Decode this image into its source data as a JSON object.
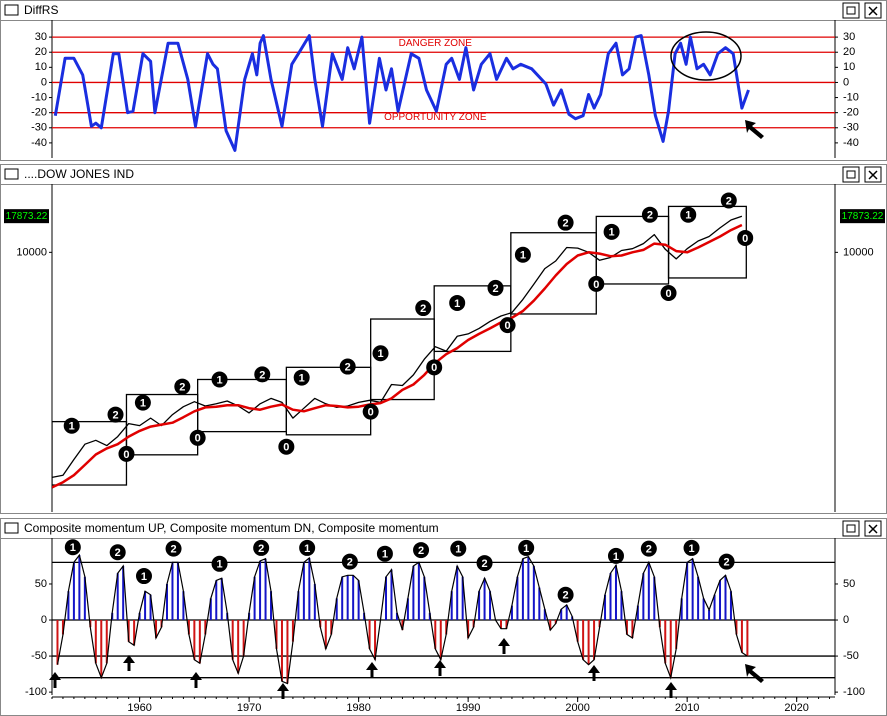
{
  "chart_data": [
    {
      "type": "line",
      "title": "DiffRS",
      "xlim": [
        1952,
        2023.5
      ],
      "ylim": [
        -50,
        40
      ],
      "yticks": [
        30,
        20,
        10,
        0,
        -10,
        -20,
        -30,
        -40
      ],
      "hlines": [
        30,
        20,
        0,
        -20,
        -30
      ],
      "hline_color": "#e00000",
      "annotations": [
        {
          "text": "DANGER ZONE",
          "x": 1987,
          "y": 26
        },
        {
          "text": "OPPORTUNITY ZONE",
          "x": 1987,
          "y": -23
        }
      ],
      "annotation_color": "#e00000",
      "series": [
        {
          "color": "#1a2ee0",
          "x": [
            1952.3,
            1953.2,
            1954,
            1954.8,
            1955.6,
            1956,
            1956.5,
            1957.6,
            1958.1,
            1958.9,
            1959.4,
            1960.3,
            1961,
            1961.4,
            1962.6,
            1963.5,
            1964.4,
            1965.1,
            1966.2,
            1966.7,
            1967.1,
            1967.9,
            1968.7,
            1969.6,
            1970.3,
            1970.7,
            1971,
            1971.3,
            1972,
            1973,
            1973.9,
            1974.5,
            1975.5,
            1976,
            1976.7,
            1977.6,
            1978.5,
            1979,
            1979.6,
            1980.3,
            1981,
            1981.9,
            1982.5,
            1983,
            1983.6,
            1984.8,
            1985.5,
            1986.2,
            1987.1,
            1988,
            1988.5,
            1989.2,
            1989.8,
            1990.5,
            1991.2,
            1992,
            1992.6,
            1993.5,
            1994.1,
            1994.8,
            1995.8,
            1997.1,
            1997.8,
            1998.5,
            1999.2,
            1999.8,
            2000.5,
            2001,
            2001.5,
            2002.1,
            2002.8,
            2003.5,
            2004.1,
            2004.7,
            2005.3,
            2005.8,
            2006.5,
            2007.1,
            2007.8,
            2008.3,
            2008.9,
            2009.4,
            2009.9,
            2010.3,
            2010.9,
            2011.5,
            2012.1,
            2012.8,
            2013.5,
            2014.2,
            2015,
            2015.6
          ],
          "values": [
            -22,
            16,
            16,
            5,
            -29,
            -27,
            -30,
            19,
            19,
            -20,
            -19,
            19,
            14,
            -20,
            26,
            26,
            2,
            -29,
            19,
            12,
            9,
            -32,
            -45,
            2,
            19,
            5,
            26,
            31,
            2,
            -29,
            12,
            19,
            31,
            2,
            -29,
            19,
            2,
            23,
            9,
            30,
            -27,
            16,
            -5,
            9,
            -19,
            19,
            16,
            -5,
            -19,
            12,
            16,
            2,
            23,
            -5,
            12,
            19,
            2,
            16,
            9,
            12,
            9,
            -1,
            -15,
            -5,
            -21,
            -24,
            -22,
            -8,
            -17,
            -8,
            19,
            26,
            5,
            9,
            30,
            31,
            5,
            -22,
            -39,
            -19,
            19,
            26,
            12,
            30,
            9,
            12,
            5,
            19,
            23,
            19,
            -17,
            -5
          ]
        }
      ]
    },
    {
      "type": "line",
      "title": "....DOW JONES IND",
      "log_scale": true,
      "xlim": [
        1952,
        2023.5
      ],
      "ylim": [
        155,
        29000
      ],
      "yticks": [
        10000
      ],
      "last_value_color": "#00ff00",
      "series": [
        {
          "color": "#000000",
          "x": [
            1952,
            1953,
            1954,
            1955,
            1956,
            1957,
            1958,
            1959,
            1960,
            1961,
            1962,
            1963,
            1964,
            1965,
            1966,
            1967,
            1968,
            1969,
            1970,
            1971,
            1972,
            1973,
            1974,
            1975,
            1976,
            1977,
            1978,
            1979,
            1980,
            1981,
            1982,
            1983,
            1984,
            1985,
            1986,
            1987,
            1988,
            1989,
            1990,
            1991,
            1992,
            1993,
            1994,
            1995,
            1996,
            1997,
            1998,
            1999,
            2000,
            2001,
            2002,
            2003,
            2004,
            2005,
            2006,
            2007,
            2008,
            2009,
            2010,
            2011,
            2012,
            2013,
            2014,
            2015
          ],
          "values": [
            270,
            280,
            360,
            460,
            490,
            450,
            520,
            640,
            620,
            700,
            620,
            740,
            840,
            910,
            850,
            880,
            920,
            850,
            760,
            880,
            960,
            900,
            700,
            820,
            960,
            880,
            830,
            850,
            900,
            930,
            900,
            1200,
            1180,
            1400,
            1800,
            2200,
            2050,
            2600,
            2700,
            2950,
            3300,
            3600,
            3800,
            4700,
            6000,
            7700,
            8700,
            10800,
            10700,
            10000,
            8800,
            9200,
            10300,
            10600,
            11500,
            13300,
            10500,
            9000,
            10600,
            12000,
            12900,
            14800,
            16800,
            17873.22
          ]
        },
        {
          "color": "#e00000",
          "x": [
            1952,
            1953,
            1954,
            1955,
            1956,
            1957,
            1958,
            1959,
            1960,
            1961,
            1962,
            1963,
            1964,
            1965,
            1966,
            1967,
            1968,
            1969,
            1970,
            1971,
            1972,
            1973,
            1974,
            1975,
            1976,
            1977,
            1978,
            1979,
            1980,
            1981,
            1982,
            1983,
            1984,
            1985,
            1986,
            1987,
            1988,
            1989,
            1990,
            1991,
            1992,
            1993,
            1994,
            1995,
            1996,
            1997,
            1998,
            1999,
            2000,
            2001,
            2002,
            2003,
            2004,
            2005,
            2006,
            2007,
            2008,
            2009,
            2010,
            2011,
            2012,
            2013,
            2014,
            2015
          ],
          "values": [
            230,
            250,
            280,
            330,
            390,
            430,
            460,
            520,
            570,
            610,
            630,
            650,
            710,
            780,
            830,
            840,
            860,
            860,
            820,
            800,
            840,
            870,
            800,
            780,
            820,
            860,
            850,
            830,
            840,
            870,
            890,
            960,
            1100,
            1200,
            1400,
            1700,
            1950,
            2150,
            2450,
            2700,
            2950,
            3250,
            3500,
            3900,
            4600,
            5600,
            6900,
            8300,
            9500,
            10000,
            9800,
            9400,
            9500,
            10000,
            10400,
            11500,
            11300,
            10200,
            10000,
            10800,
            11800,
            12900,
            14300,
            15500
          ]
        }
      ],
      "boxes": [
        {
          "x0": 1952,
          "x1": 1958.8,
          "y0": 239,
          "y1": 661
        },
        {
          "x0": 1958.8,
          "x1": 1965.3,
          "y0": 388,
          "y1": 1021
        },
        {
          "x0": 1965.3,
          "x1": 1973.4,
          "y0": 563,
          "y1": 1300
        },
        {
          "x0": 1973.4,
          "x1": 1981.1,
          "y0": 535,
          "y1": 1580
        },
        {
          "x0": 1981.1,
          "x1": 1986.9,
          "y0": 942,
          "y1": 3430
        },
        {
          "x0": 1986.9,
          "x1": 1993.9,
          "y0": 2040,
          "y1": 5840
        },
        {
          "x0": 1993.9,
          "x1": 2001.7,
          "y0": 3720,
          "y1": 13700
        },
        {
          "x0": 2001.7,
          "x1": 2008.3,
          "y0": 6020,
          "y1": 17800
        },
        {
          "x0": 2008.3,
          "x1": 2015.4,
          "y0": 6630,
          "y1": 20900
        }
      ],
      "markers": [
        {
          "x": 1953.8,
          "y": 619,
          "label": "1"
        },
        {
          "x": 1957.8,
          "y": 740,
          "label": "2"
        },
        {
          "x": 1958.8,
          "y": 394,
          "label": "0"
        },
        {
          "x": 1960.3,
          "y": 897,
          "label": "1"
        },
        {
          "x": 1963.9,
          "y": 1160,
          "label": "2"
        },
        {
          "x": 1965.3,
          "y": 510,
          "label": "0"
        },
        {
          "x": 1967.3,
          "y": 1300,
          "label": "1"
        },
        {
          "x": 1971.2,
          "y": 1410,
          "label": "2"
        },
        {
          "x": 1973.4,
          "y": 442,
          "label": "0"
        },
        {
          "x": 1974.8,
          "y": 1340,
          "label": "1"
        },
        {
          "x": 1979.0,
          "y": 1600,
          "label": "2"
        },
        {
          "x": 1981.1,
          "y": 776,
          "label": "0"
        },
        {
          "x": 1982.0,
          "y": 1980,
          "label": "1"
        },
        {
          "x": 1985.9,
          "y": 4090,
          "label": "2"
        },
        {
          "x": 1986.9,
          "y": 1580,
          "label": "0"
        },
        {
          "x": 1989.0,
          "y": 4440,
          "label": "1"
        },
        {
          "x": 1992.5,
          "y": 5650,
          "label": "2"
        },
        {
          "x": 1993.6,
          "y": 3110,
          "label": "0"
        },
        {
          "x": 1995.0,
          "y": 9620,
          "label": "1"
        },
        {
          "x": 1998.9,
          "y": 16100,
          "label": "2"
        },
        {
          "x": 2001.7,
          "y": 6030,
          "label": "0"
        },
        {
          "x": 2003.1,
          "y": 13900,
          "label": "1"
        },
        {
          "x": 2006.6,
          "y": 18300,
          "label": "2"
        },
        {
          "x": 2008.3,
          "y": 5210,
          "label": "0"
        },
        {
          "x": 2010.1,
          "y": 18300,
          "label": "1"
        },
        {
          "x": 2013.8,
          "y": 23000,
          "label": "2"
        },
        {
          "x": 2015.3,
          "y": 12600,
          "label": "0"
        }
      ]
    },
    {
      "type": "bar",
      "title": "Composite momentum UP, Composite momentum DN, Composite momentum",
      "xlim": [
        1952,
        2023.5
      ],
      "ylim": [
        -104,
        111
      ],
      "yticks": [
        50,
        0,
        -50,
        -100
      ],
      "xticks": [
        1960,
        1970,
        1980,
        1990,
        2000,
        2010,
        2020
      ],
      "hlines": [
        80,
        0,
        -50,
        -80
      ],
      "up_color": "#1414c8",
      "down_color": "#d01414",
      "line_color": "#000000",
      "series": [
        {
          "x": [
            1952.5,
            1953,
            1953.5,
            1954,
            1954.5,
            1955,
            1955.5,
            1956,
            1956.5,
            1957,
            1957.5,
            1958,
            1958.5,
            1959,
            1959.5,
            1960,
            1960.5,
            1961,
            1961.5,
            1962,
            1962.5,
            1963,
            1963.5,
            1964,
            1964.5,
            1965,
            1965.5,
            1966,
            1966.5,
            1967,
            1967.5,
            1968,
            1968.5,
            1969,
            1969.5,
            1970,
            1970.5,
            1971,
            1971.5,
            1972,
            1972.5,
            1973,
            1973.5,
            1974,
            1974.5,
            1975,
            1975.5,
            1976,
            1976.5,
            1977,
            1977.5,
            1978,
            1978.5,
            1979,
            1979.5,
            1980,
            1980.5,
            1981,
            1981.5,
            1982,
            1982.5,
            1983,
            1983.5,
            1984,
            1984.5,
            1985,
            1985.5,
            1986,
            1986.5,
            1987,
            1987.5,
            1988,
            1988.5,
            1989,
            1989.5,
            1990,
            1990.5,
            1991,
            1991.5,
            1992,
            1992.5,
            1993,
            1993.5,
            1994,
            1994.5,
            1995,
            1995.5,
            1996,
            1996.5,
            1997,
            1997.5,
            1998,
            1998.5,
            1999,
            1999.5,
            2000,
            2000.5,
            2001,
            2001.5,
            2002,
            2002.5,
            2003,
            2003.5,
            2004,
            2004.5,
            2005,
            2005.5,
            2006,
            2006.5,
            2007,
            2007.5,
            2008,
            2008.5,
            2009,
            2009.5,
            2010,
            2010.5,
            2011,
            2011.5,
            2012,
            2012.5,
            2013,
            2013.5,
            2014,
            2014.5,
            2015,
            2015.5
          ],
          "values": [
            -62,
            -20,
            40,
            80,
            90,
            60,
            -10,
            -60,
            -80,
            -60,
            10,
            65,
            75,
            -30,
            -35,
            10,
            40,
            35,
            -25,
            -10,
            50,
            80,
            80,
            40,
            -20,
            -55,
            -60,
            -20,
            30,
            55,
            58,
            10,
            -55,
            -74,
            -50,
            10,
            60,
            82,
            85,
            40,
            -40,
            -85,
            -88,
            -30,
            40,
            80,
            86,
            50,
            -10,
            -40,
            -20,
            30,
            60,
            62,
            62,
            55,
            10,
            -40,
            -55,
            0,
            60,
            70,
            10,
            -14,
            30,
            75,
            80,
            60,
            10,
            -40,
            -55,
            -20,
            40,
            75,
            60,
            -25,
            -10,
            40,
            58,
            40,
            0,
            -12,
            -12,
            20,
            60,
            85,
            88,
            75,
            45,
            15,
            -14,
            -5,
            15,
            21,
            5,
            -30,
            -55,
            -62,
            -55,
            -10,
            35,
            65,
            76,
            40,
            -20,
            -25,
            20,
            65,
            80,
            60,
            -10,
            -60,
            -80,
            -40,
            30,
            80,
            85,
            60,
            30,
            14,
            35,
            55,
            62,
            40,
            -20,
            -45,
            -50
          ]
        }
      ],
      "markers": [
        {
          "x": 1953.9,
          "y": 101,
          "label": "1"
        },
        {
          "x": 1958.0,
          "y": 94,
          "label": "2"
        },
        {
          "x": 1960.4,
          "y": 61,
          "label": "1"
        },
        {
          "x": 1963.1,
          "y": 99,
          "label": "2"
        },
        {
          "x": 1967.3,
          "y": 78,
          "label": "1"
        },
        {
          "x": 1971.1,
          "y": 100,
          "label": "2"
        },
        {
          "x": 1975.3,
          "y": 100,
          "label": "1"
        },
        {
          "x": 1979.2,
          "y": 81,
          "label": "2"
        },
        {
          "x": 1982.4,
          "y": 92,
          "label": "1"
        },
        {
          "x": 1985.7,
          "y": 97,
          "label": "2"
        },
        {
          "x": 1989.1,
          "y": 99,
          "label": "1"
        },
        {
          "x": 1991.5,
          "y": 79,
          "label": "2"
        },
        {
          "x": 1995.3,
          "y": 100,
          "label": "1"
        },
        {
          "x": 1998.9,
          "y": 35,
          "label": "2"
        },
        {
          "x": 2003.5,
          "y": 89,
          "label": "1"
        },
        {
          "x": 2006.5,
          "y": 99,
          "label": "2"
        },
        {
          "x": 2010.4,
          "y": 100,
          "label": "1"
        },
        {
          "x": 2013.6,
          "y": 81,
          "label": "2"
        }
      ]
    }
  ]
}
